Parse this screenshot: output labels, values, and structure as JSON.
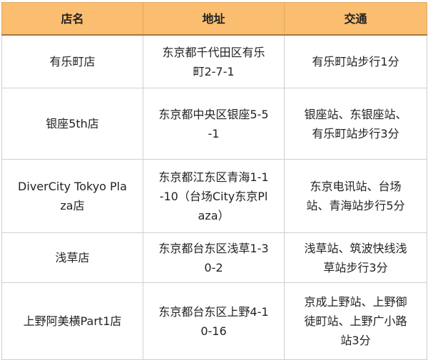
{
  "colors": {
    "header_bg": "#fbbd70",
    "border": "#cfcfcf"
  },
  "table": {
    "headers": [
      "店名",
      "地址",
      "交通"
    ],
    "rows": [
      [
        "有乐町店",
        "东京都千代田区有乐町2-7-1",
        "有乐町站步行1分"
      ],
      [
        "银座5th店",
        "东京都中央区银座5-5-1",
        "银座站、东银座站、有乐町站步行3分"
      ],
      [
        "DiverCity Tokyo Plaza店",
        "东京都江东区青海1-1-10（台场City东京Plaza）",
        "东京电讯站、台场站、青海站步行5分"
      ],
      [
        "浅草店",
        "东京都台东区浅草1-30-2",
        "浅草站、筑波快线浅草站步行3分"
      ],
      [
        "上野阿美横Part1店",
        "东京都台东区上野4-10-16",
        "京成上野站、上野御徒町站、上野广小路站3分"
      ]
    ]
  }
}
